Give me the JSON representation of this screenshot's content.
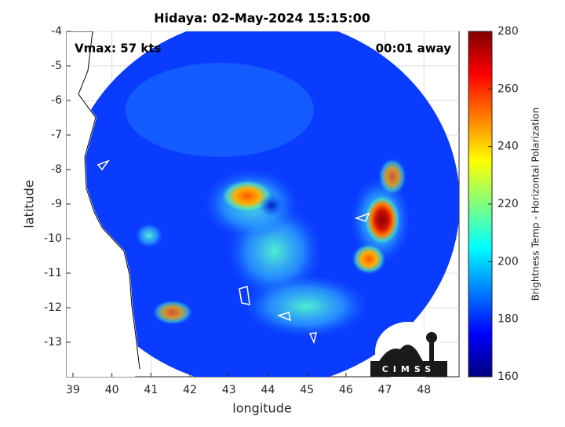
{
  "chart_data": {
    "type": "map",
    "title": "Hidaya: 02-May-2024 15:15:00",
    "annotations": [
      "Vmax: 57 kts",
      "00:01 away"
    ],
    "xlabel": "longitude",
    "ylabel": "latitude",
    "xlim": [
      38.84,
      48.9
    ],
    "ylim": [
      -14,
      -4
    ],
    "xticks": [
      39,
      40,
      41,
      42,
      43,
      44,
      45,
      46,
      47,
      48
    ],
    "yticks": [
      -4,
      -5,
      -6,
      -7,
      -8,
      -9,
      -10,
      -11,
      -12,
      -13
    ],
    "grid": true,
    "colorbar": {
      "label": "Brightness Temp - Horizontal Polarization",
      "colormap": "jet",
      "clim": [
        160,
        280
      ],
      "ticks": [
        160,
        180,
        200,
        220,
        240,
        260,
        280
      ]
    },
    "logo_text": "CIMSS"
  }
}
